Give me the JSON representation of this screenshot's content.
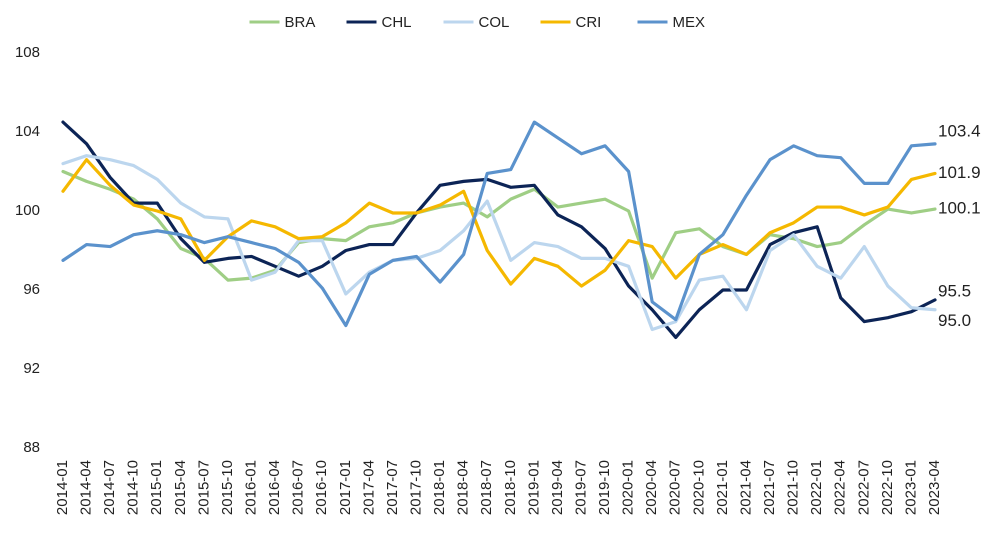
{
  "chart_data": {
    "type": "line",
    "categories": [
      "2014-01",
      "2014-04",
      "2014-07",
      "2014-10",
      "2015-01",
      "2015-04",
      "2015-07",
      "2015-10",
      "2016-01",
      "2016-04",
      "2016-07",
      "2016-10",
      "2017-01",
      "2017-04",
      "2017-07",
      "2017-10",
      "2018-01",
      "2018-04",
      "2018-07",
      "2018-10",
      "2019-01",
      "2019-04",
      "2019-07",
      "2019-10",
      "2020-01",
      "2020-04",
      "2020-07",
      "2020-10",
      "2021-01",
      "2021-04",
      "2021-07",
      "2021-10",
      "2022-01",
      "2022-04",
      "2022-07",
      "2022-10",
      "2023-01",
      "2023-04"
    ],
    "series": [
      {
        "name": "BRA",
        "color": "#9fce85",
        "values": [
          102.0,
          101.5,
          101.1,
          100.6,
          99.6,
          98.1,
          97.6,
          96.5,
          96.6,
          97.0,
          98.4,
          98.6,
          98.5,
          99.2,
          99.4,
          99.9,
          100.2,
          100.4,
          99.7,
          100.6,
          101.1,
          100.2,
          100.4,
          100.6,
          100.0,
          96.6,
          98.9,
          99.1,
          98.2,
          97.8,
          98.8,
          98.6,
          98.2,
          98.4,
          99.3,
          100.1,
          99.9,
          100.1
        ]
      },
      {
        "name": "CHL",
        "color": "#0c2456",
        "values": [
          104.5,
          103.4,
          101.7,
          100.4,
          100.4,
          98.6,
          97.4,
          97.6,
          97.7,
          97.2,
          96.7,
          97.2,
          98.0,
          98.3,
          98.3,
          99.9,
          101.3,
          101.5,
          101.6,
          101.2,
          101.3,
          99.8,
          99.2,
          98.1,
          96.2,
          95.0,
          93.6,
          95.0,
          96.0,
          96.0,
          98.3,
          98.9,
          99.2,
          95.6,
          94.4,
          94.6,
          94.9,
          95.5
        ]
      },
      {
        "name": "COL",
        "color": "#bcd6ee",
        "values": [
          102.4,
          102.8,
          102.6,
          102.3,
          101.6,
          100.4,
          99.7,
          99.6,
          96.5,
          96.9,
          98.5,
          98.5,
          95.8,
          96.9,
          97.5,
          97.6,
          98.0,
          99.0,
          100.5,
          97.5,
          98.4,
          98.2,
          97.6,
          97.6,
          97.2,
          94.0,
          94.4,
          96.5,
          96.7,
          95.0,
          98.0,
          98.8,
          97.2,
          96.6,
          98.2,
          96.2,
          95.1,
          95.0
        ],
        "value_labels": [
          null,
          null,
          null,
          null,
          null,
          null,
          null,
          null,
          null,
          null,
          null,
          null,
          null,
          null,
          null,
          null,
          null,
          null,
          null,
          null,
          null,
          null,
          null,
          null,
          null,
          null,
          null,
          null,
          null,
          null,
          null,
          null,
          null,
          null,
          null,
          null,
          null,
          "95.0"
        ]
      },
      {
        "name": "CRI",
        "color": "#f5b800",
        "values": [
          101.0,
          102.6,
          101.3,
          100.3,
          100.0,
          99.6,
          97.5,
          98.7,
          99.5,
          99.2,
          98.6,
          98.7,
          99.4,
          100.4,
          99.9,
          99.9,
          100.3,
          101.0,
          98.0,
          96.3,
          97.6,
          97.2,
          96.2,
          97.0,
          98.5,
          98.2,
          96.6,
          97.8,
          98.3,
          97.8,
          98.9,
          99.4,
          100.2,
          100.2,
          99.8,
          100.2,
          101.6,
          101.9
        ]
      },
      {
        "name": "MEX",
        "color": "#5b92cc",
        "values": [
          97.5,
          98.3,
          98.2,
          98.8,
          99.0,
          98.8,
          98.4,
          98.7,
          98.4,
          98.1,
          97.4,
          96.1,
          94.2,
          96.8,
          97.5,
          97.7,
          96.4,
          97.8,
          101.9,
          102.1,
          104.5,
          103.7,
          102.9,
          103.3,
          102.0,
          95.4,
          94.5,
          97.8,
          98.8,
          100.8,
          102.6,
          103.3,
          102.8,
          102.7,
          101.4,
          101.4,
          103.3,
          103.4
        ]
      }
    ],
    "ylim": [
      88,
      108
    ],
    "yticks": [
      88,
      92,
      96,
      100,
      104,
      108
    ],
    "grid": false,
    "legend": "top"
  }
}
